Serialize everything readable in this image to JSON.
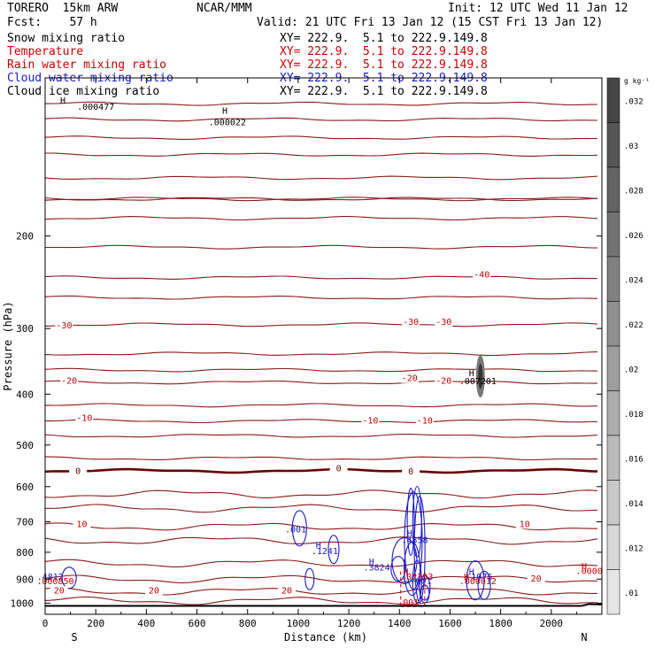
{
  "header": {
    "model": "TORERO  15km ARW",
    "center": "NCAR/MMM",
    "init": "Init: 12 UTC Wed 11 Jan 12",
    "fcst": "Fcst:    57 h",
    "valid": "Valid: 21 UTC Fri 13 Jan 12 (15 CST Fri 13 Jan 12)"
  },
  "fields": [
    {
      "name": "Snow mixing ratio",
      "xy": "XY= 222.9.  5.1 to 222.9.149.8",
      "color": "#000000"
    },
    {
      "name": "Temperature",
      "xy": "XY= 222.9.  5.1 to 222.9.149.8",
      "color": "#cc0000"
    },
    {
      "name": "Rain water mixing ratio",
      "xy": "XY= 222.9.  5.1 to 222.9.149.8",
      "color": "#cc0000"
    },
    {
      "name": "Cloud water mixing ratio",
      "xy": "XY= 222.9.  5.1 to 222.9.149.8",
      "color": "#1a1acc"
    },
    {
      "name": "Cloud ice mixing ratio",
      "xy": "XY= 222.9.  5.1 to 222.9.149.8",
      "color": "#000000"
    }
  ],
  "chart_data": {
    "type": "contour",
    "xlabel": "Distance (km)",
    "ylabel": "Pressure (hPa)",
    "xlim": [
      0,
      2200
    ],
    "ylim": [
      1050,
      100
    ],
    "y_scale": "log",
    "xticks": [
      "0",
      "200",
      "400",
      "600",
      "800",
      "1000",
      "1200",
      "1400",
      "1600",
      "1800",
      "2000"
    ],
    "xtick_values": [
      0,
      200,
      400,
      600,
      800,
      1000,
      1200,
      1400,
      1600,
      1800,
      2000
    ],
    "yticks": [
      "200",
      "300",
      "400",
      "500",
      "600",
      "700",
      "800",
      "900",
      "1000"
    ],
    "ytick_values": [
      200,
      300,
      400,
      500,
      600,
      700,
      800,
      900,
      1000
    ],
    "south_label": "S",
    "north_label": "N",
    "colorbar": {
      "unit": "g kg⁻¹",
      "labels": [
        ".032",
        ".03",
        ".028",
        ".026",
        ".024",
        ".022",
        ".02",
        ".018",
        ".016",
        ".014",
        ".012",
        ".01"
      ]
    },
    "temperature_contours_C": [
      {
        "label": "-40",
        "p": 155
      },
      {
        "label": "-40",
        "p": 170
      },
      {
        "label": "-40",
        "p": 185
      },
      {
        "label": "-30",
        "p": 295
      },
      {
        "label": "-20",
        "p": 380
      },
      {
        "label": "-10",
        "p": 450
      },
      {
        "label": "0",
        "p": 560
      },
      {
        "label": "10",
        "p": 715
      },
      {
        "label": "20",
        "p": 950
      }
    ],
    "contour_labels": [
      {
        "text": "-40",
        "x": 1725,
        "p": 240,
        "color": "#cc0000"
      },
      {
        "text": "-30",
        "x": 75,
        "p": 300,
        "color": "#cc0000"
      },
      {
        "text": "-30",
        "x": 1445,
        "p": 295,
        "color": "#cc0000"
      },
      {
        "text": "-30",
        "x": 1575,
        "p": 295,
        "color": "#cc0000"
      },
      {
        "text": "-20",
        "x": 95,
        "p": 382,
        "color": "#cc0000"
      },
      {
        "text": "-20",
        "x": 1440,
        "p": 378,
        "color": "#cc0000"
      },
      {
        "text": "-20",
        "x": 1575,
        "p": 382,
        "color": "#cc0000"
      },
      {
        "text": "-10",
        "x": 155,
        "p": 450,
        "color": "#cc0000"
      },
      {
        "text": "-10",
        "x": 1285,
        "p": 455,
        "color": "#cc0000"
      },
      {
        "text": "-10",
        "x": 1500,
        "p": 455,
        "color": "#cc0000"
      },
      {
        "text": "0",
        "x": 130,
        "p": 568,
        "color": "#660000"
      },
      {
        "text": "0",
        "x": 1160,
        "p": 561,
        "color": "#660000"
      },
      {
        "text": "0",
        "x": 1445,
        "p": 569,
        "color": "#660000"
      },
      {
        "text": "10",
        "x": 145,
        "p": 716,
        "color": "#cc0000"
      },
      {
        "text": "10",
        "x": 1895,
        "p": 716,
        "color": "#cc0000"
      },
      {
        "text": "20",
        "x": 55,
        "p": 958,
        "color": "#cc0000"
      },
      {
        "text": "20",
        "x": 430,
        "p": 958,
        "color": "#cc0000"
      },
      {
        "text": "20",
        "x": 955,
        "p": 958,
        "color": "#cc0000"
      },
      {
        "text": "20",
        "x": 1940,
        "p": 910,
        "color": "#cc0000"
      }
    ],
    "maxima_labels": [
      {
        "text": "H",
        "x": 710,
        "p": 117,
        "color": "#000000"
      },
      {
        "text": ".000022",
        "x": 720,
        "p": 123,
        "color": "#000000"
      },
      {
        "text": "H",
        "x": 1685,
        "p": 370,
        "color": "#000000"
      },
      {
        "text": ".007201",
        "x": 1710,
        "p": 383,
        "color": "#000000"
      },
      {
        "text": ".001",
        "x": 990,
        "p": 734,
        "color": "#1a1acc"
      },
      {
        "text": "H",
        "x": 1080,
        "p": 786,
        "color": "#1a1acc"
      },
      {
        "text": ".1241",
        "x": 1105,
        "p": 806,
        "color": "#1a1acc"
      },
      {
        "text": "H",
        "x": 1440,
        "p": 746,
        "color": "#1a1acc"
      },
      {
        "text": ".4858",
        "x": 1460,
        "p": 768,
        "color": "#1a1acc"
      },
      {
        "text": "H",
        "x": 1290,
        "p": 845,
        "color": "#1a1acc"
      },
      {
        "text": ".3824",
        "x": 1310,
        "p": 866,
        "color": "#1a1acc"
      },
      {
        "text": "H",
        "x": 1425,
        "p": 883,
        "color": "#cc0000"
      },
      {
        "text": ".02393",
        "x": 1470,
        "p": 902,
        "color": "#cc0000"
      },
      {
        "text": ".001",
        "x": 1485,
        "p": 918,
        "color": "#1a1acc"
      },
      {
        "text": "H",
        "x": 1685,
        "p": 884,
        "color": "#1a1acc"
      },
      {
        "text": "H",
        "x": 1665,
        "p": 903,
        "color": "#cc0000"
      },
      {
        "text": ".1975",
        "x": 1715,
        "p": 903,
        "color": "#1a1acc"
      },
      {
        "text": ".000012",
        "x": 1710,
        "p": 920,
        "color": "#cc0000"
      },
      {
        "text": ".4812",
        "x": 20,
        "p": 903,
        "color": "#1a1acc"
      },
      {
        "text": ".000850",
        "x": 40,
        "p": 920,
        "color": "#cc0000"
      },
      {
        "text": "H",
        "x": 2130,
        "p": 862,
        "color": "#cc0000"
      },
      {
        "text": ".0000",
        "x": 2150,
        "p": 880,
        "color": "#cc0000"
      },
      {
        "text": ".001",
        "x": 1435,
        "p": 1010,
        "color": "#cc0000"
      },
      {
        "text": ".000477",
        "x": 200,
        "p": 115,
        "color": "#000000"
      },
      {
        "text": "H",
        "x": 70,
        "p": 112,
        "color": "#000000"
      }
    ]
  },
  "colors": {
    "temperature": "#8b1a1a",
    "freezing": "#6b0000",
    "cloud_water": "#1a1acc",
    "rain": "#cc0000",
    "ice": "#555555"
  }
}
